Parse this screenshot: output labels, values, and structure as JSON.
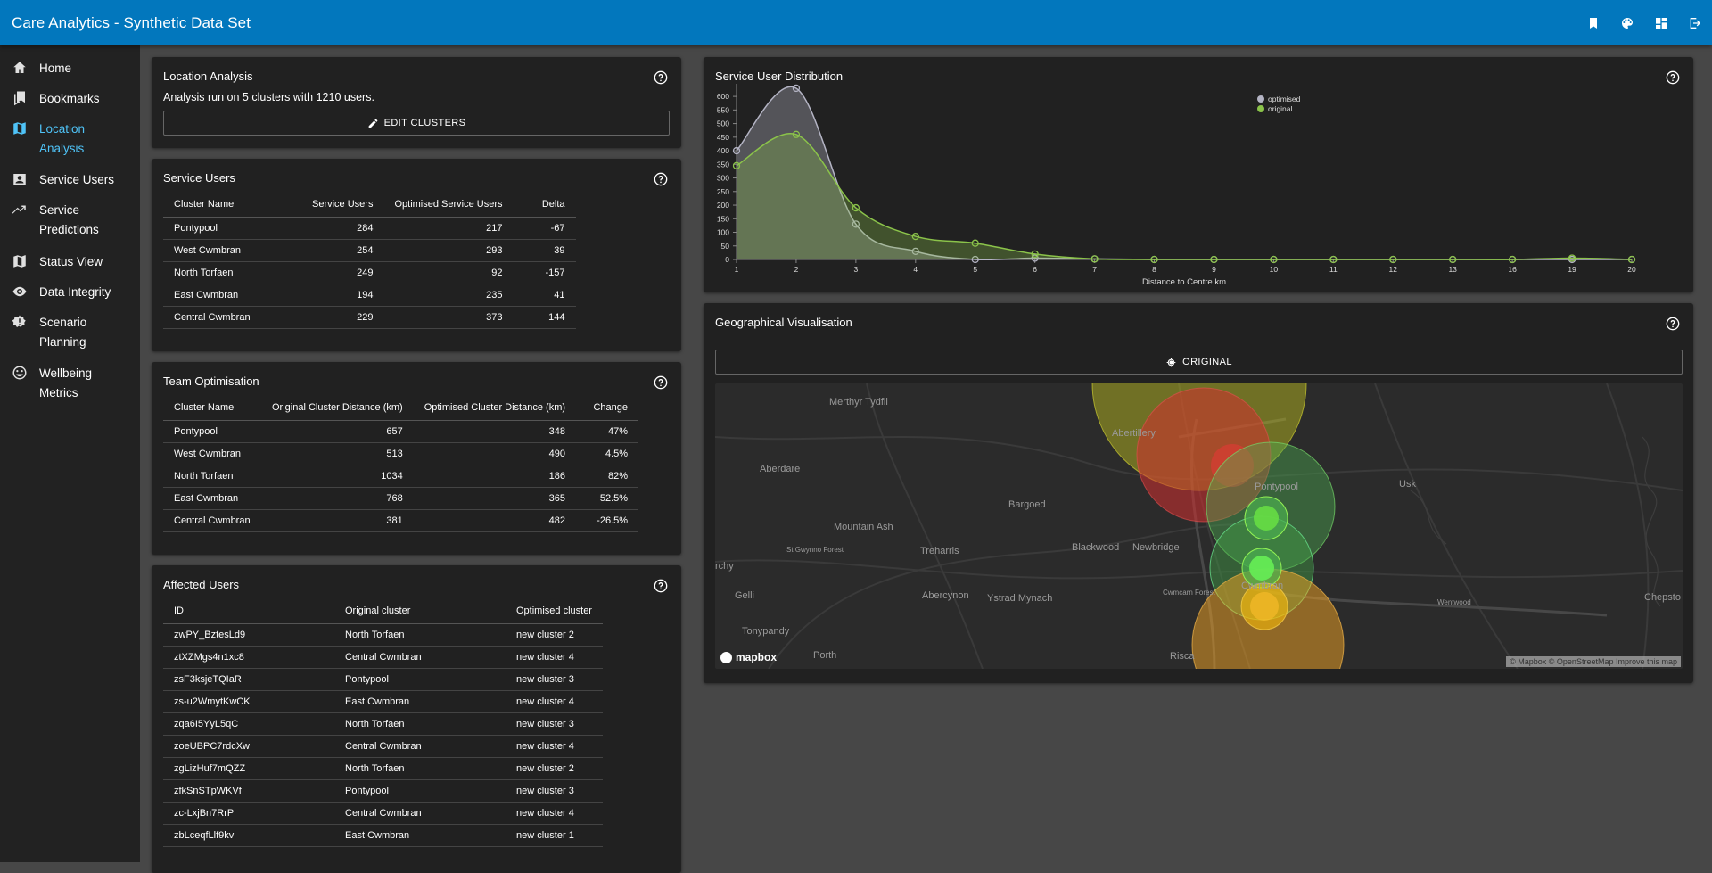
{
  "app": {
    "title": "Care Analytics - Synthetic Data Set"
  },
  "topbar_icons": [
    "bookmark-icon",
    "palette-icon",
    "dashboard-icon",
    "logout-icon"
  ],
  "sidebar": {
    "items": [
      {
        "label_lines": [
          "Home"
        ],
        "icon": "home-icon",
        "active": false
      },
      {
        "label_lines": [
          "Bookmarks"
        ],
        "icon": "bookmarks-icon",
        "active": false
      },
      {
        "label_lines": [
          "Location",
          "Analysis"
        ],
        "icon": "map-icon",
        "active": true
      },
      {
        "label_lines": [
          "Service Users"
        ],
        "icon": "user-card-icon",
        "active": false
      },
      {
        "label_lines": [
          "Service",
          "Predictions"
        ],
        "icon": "trending-up-icon",
        "active": false
      },
      {
        "label_lines": [
          "Status View"
        ],
        "icon": "map-outline-icon",
        "active": false
      },
      {
        "label_lines": [
          "Data Integrity"
        ],
        "icon": "eye-icon",
        "active": false
      },
      {
        "label_lines": [
          "Scenario",
          "Planning"
        ],
        "icon": "gear-badge-icon",
        "active": false
      },
      {
        "label_lines": [
          "Wellbeing",
          "Metrics"
        ],
        "icon": "smile-icon",
        "active": false
      }
    ]
  },
  "location_analysis": {
    "title": "Location Analysis",
    "summary": "Analysis run on 5 clusters with 1210 users.",
    "edit_button": "EDIT CLUSTERS"
  },
  "service_users": {
    "title": "Service Users",
    "headers": [
      "Cluster Name",
      "Service Users",
      "Optimised Service Users",
      "Delta"
    ],
    "rows": [
      [
        "Pontypool",
        "284",
        "217",
        "-67"
      ],
      [
        "West Cwmbran",
        "254",
        "293",
        "39"
      ],
      [
        "North Torfaen",
        "249",
        "92",
        "-157"
      ],
      [
        "East Cwmbran",
        "194",
        "235",
        "41"
      ],
      [
        "Central Cwmbran",
        "229",
        "373",
        "144"
      ]
    ]
  },
  "team_optimisation": {
    "title": "Team Optimisation",
    "headers": [
      "Cluster Name",
      "Original Cluster Distance (km)",
      "Optimised Cluster Distance (km)",
      "Change"
    ],
    "rows": [
      [
        "Pontypool",
        "657",
        "348",
        "47%"
      ],
      [
        "West Cwmbran",
        "513",
        "490",
        "4.5%"
      ],
      [
        "North Torfaen",
        "1034",
        "186",
        "82%"
      ],
      [
        "East Cwmbran",
        "768",
        "365",
        "52.5%"
      ],
      [
        "Central Cwmbran",
        "381",
        "482",
        "-26.5%"
      ]
    ]
  },
  "affected_users": {
    "title": "Affected Users",
    "headers": [
      "ID",
      "Original cluster",
      "Optimised cluster"
    ],
    "rows": [
      [
        "zwPY_BztesLd9",
        "North Torfaen",
        "new cluster 2"
      ],
      [
        "ztXZMgs4n1xc8",
        "Central Cwmbran",
        "new cluster 4"
      ],
      [
        "zsF3ksjeTQIaR",
        "Pontypool",
        "new cluster 3"
      ],
      [
        "zs-u2WmytKwCK",
        "East Cwmbran",
        "new cluster 4"
      ],
      [
        "zqa6I5YyL5qC",
        "North Torfaen",
        "new cluster 3"
      ],
      [
        "zoeUBPC7rdcXw",
        "Central Cwmbran",
        "new cluster 4"
      ],
      [
        "zgLizHuf7mQZZ",
        "North Torfaen",
        "new cluster 2"
      ],
      [
        "zfkSnSTpWKVf",
        "Pontypool",
        "new cluster 3"
      ],
      [
        "zc-LxjBn7RrP",
        "Central Cwmbran",
        "new cluster 4"
      ],
      [
        "zbLceqfLlf9kv",
        "East Cwmbran",
        "new cluster 1"
      ]
    ]
  },
  "distribution": {
    "title": "Service User Distribution"
  },
  "chart_data": {
    "type": "area",
    "title": "",
    "xlabel": "Distance to Centre km",
    "ylabel": "",
    "categories": [
      "1",
      "2",
      "3",
      "4",
      "5",
      "6",
      "7",
      "8",
      "9",
      "10",
      "11",
      "12",
      "13",
      "16",
      "19",
      "20"
    ],
    "y_ticks": [
      0,
      50,
      100,
      150,
      200,
      250,
      300,
      350,
      400,
      450,
      500,
      550,
      600
    ],
    "ylim": [
      0,
      620
    ],
    "legend_position": "top-right",
    "series": [
      {
        "name": "optimised",
        "color": "#b4b4c4",
        "values": [
          400,
          630,
          130,
          30,
          0,
          5,
          2,
          0,
          0,
          0,
          0,
          0,
          0,
          0,
          0,
          0
        ]
      },
      {
        "name": "original",
        "color": "#8bc34a",
        "values": [
          345,
          460,
          190,
          85,
          60,
          20,
          2,
          0,
          0,
          0,
          0,
          0,
          0,
          0,
          5,
          0
        ]
      }
    ]
  },
  "geo": {
    "title": "Geographical Visualisation",
    "toggle_button": "ORIGINAL",
    "places": [
      "Merthyr Tydfil",
      "Abertillery",
      "Aberdare",
      "Pontypool",
      "Usk",
      "Bargoed",
      "Mountain Ash",
      "St Gwynno Forest",
      "Treharris",
      "Blackwood",
      "Newbridge",
      "rchy",
      "Gelli",
      "Abercynon",
      "Ystrad Mynach",
      "Cwmcarn Forest",
      "Cwmbran",
      "Wentwood",
      "Chepsto",
      "Tonypandy",
      "Porth",
      "Risca"
    ],
    "logo": "mapbox",
    "attribution": "© Mapbox © OpenStreetMap  Improve this map"
  }
}
